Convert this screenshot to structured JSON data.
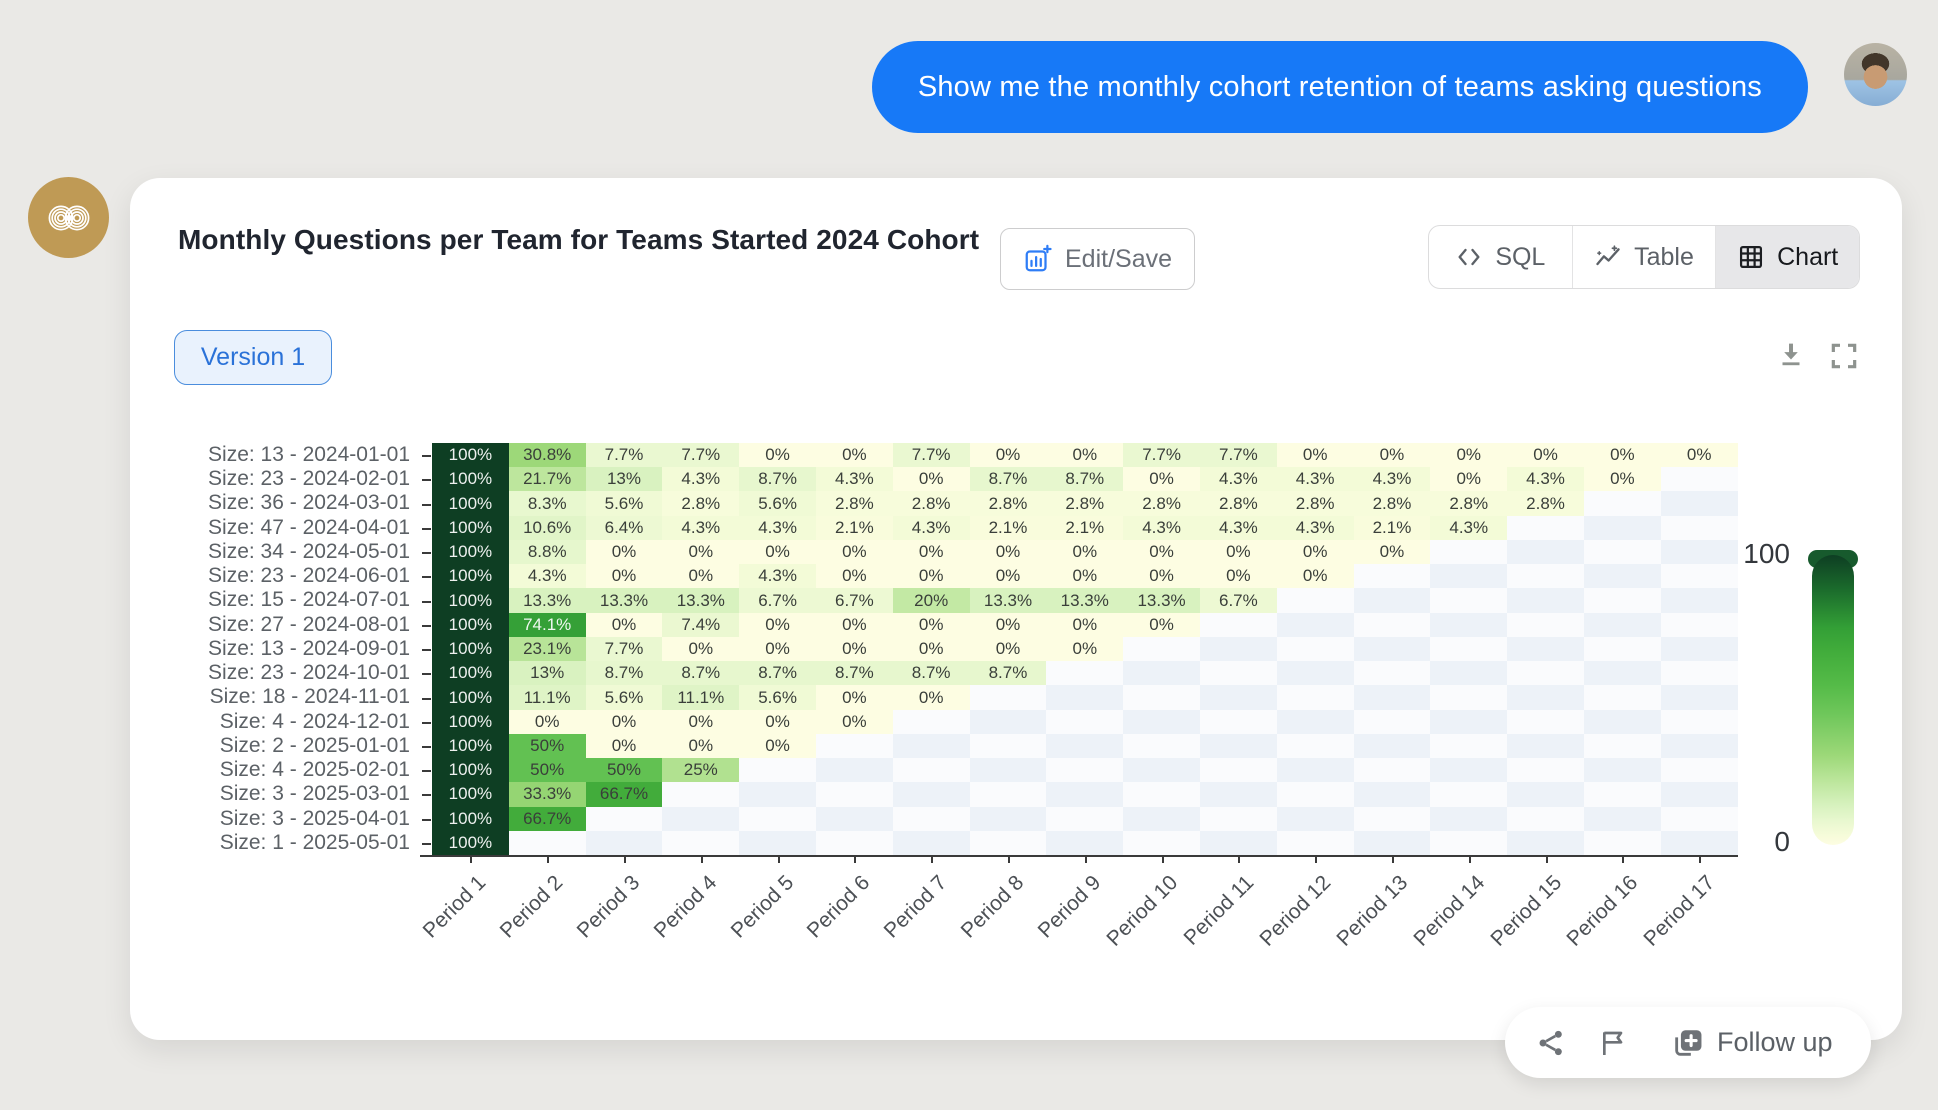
{
  "chat": {
    "message": "Show me the monthly cohort retention of teams asking questions",
    "bubble_color": "#1779f7"
  },
  "card": {
    "title": "Monthly Questions per Team for Teams Started 2024 Cohort",
    "edit_save_label": "Edit/Save",
    "tabs": [
      {
        "label": "SQL",
        "icon": "code-icon",
        "active": false
      },
      {
        "label": "Table",
        "icon": "sparkline-icon",
        "active": false
      },
      {
        "label": "Chart",
        "icon": "grid-icon",
        "active": true
      }
    ],
    "version_label": "Version 1"
  },
  "chart_data": {
    "type": "heatmap",
    "title": "Monthly Questions per Team for Teams Started 2024 Cohort",
    "x_labels": [
      "Period 1",
      "Period 2",
      "Period 3",
      "Period 4",
      "Period 5",
      "Period 6",
      "Period 7",
      "Period 8",
      "Period 9",
      "Period 10",
      "Period 11",
      "Period 12",
      "Period 13",
      "Period 14",
      "Period 15",
      "Period 16",
      "Period 17"
    ],
    "rows": [
      {
        "label": "Size: 13 - 2024-01-01",
        "values": [
          100,
          30.8,
          7.7,
          7.7,
          0,
          0,
          7.7,
          0,
          0,
          7.7,
          7.7,
          0,
          0,
          0,
          0,
          0,
          0
        ]
      },
      {
        "label": "Size: 23 - 2024-02-01",
        "values": [
          100,
          21.7,
          13,
          4.3,
          8.7,
          4.3,
          0,
          8.7,
          8.7,
          0,
          4.3,
          4.3,
          4.3,
          0,
          4.3,
          0
        ]
      },
      {
        "label": "Size: 36 - 2024-03-01",
        "values": [
          100,
          8.3,
          5.6,
          2.8,
          5.6,
          2.8,
          2.8,
          2.8,
          2.8,
          2.8,
          2.8,
          2.8,
          2.8,
          2.8,
          2.8
        ]
      },
      {
        "label": "Size: 47 - 2024-04-01",
        "values": [
          100,
          10.6,
          6.4,
          4.3,
          4.3,
          2.1,
          4.3,
          2.1,
          2.1,
          4.3,
          4.3,
          4.3,
          2.1,
          4.3
        ]
      },
      {
        "label": "Size: 34 - 2024-05-01",
        "values": [
          100,
          8.8,
          0,
          0,
          0,
          0,
          0,
          0,
          0,
          0,
          0,
          0,
          0
        ]
      },
      {
        "label": "Size: 23 - 2024-06-01",
        "values": [
          100,
          4.3,
          0,
          0,
          4.3,
          0,
          0,
          0,
          0,
          0,
          0,
          0
        ]
      },
      {
        "label": "Size: 15 - 2024-07-01",
        "values": [
          100,
          13.3,
          13.3,
          13.3,
          6.7,
          6.7,
          20,
          13.3,
          13.3,
          13.3,
          6.7
        ]
      },
      {
        "label": "Size: 27 - 2024-08-01",
        "values": [
          100,
          74.1,
          0,
          7.4,
          0,
          0,
          0,
          0,
          0,
          0
        ]
      },
      {
        "label": "Size: 13 - 2024-09-01",
        "values": [
          100,
          23.1,
          7.7,
          0,
          0,
          0,
          0,
          0,
          0
        ]
      },
      {
        "label": "Size: 23 - 2024-10-01",
        "values": [
          100,
          13,
          8.7,
          8.7,
          8.7,
          8.7,
          8.7,
          8.7
        ]
      },
      {
        "label": "Size: 18 - 2024-11-01",
        "values": [
          100,
          11.1,
          5.6,
          11.1,
          5.6,
          0,
          0
        ]
      },
      {
        "label": "Size: 4 - 2024-12-01",
        "values": [
          100,
          0,
          0,
          0,
          0,
          0
        ]
      },
      {
        "label": "Size: 2 - 2025-01-01",
        "values": [
          100,
          50,
          0,
          0,
          0
        ]
      },
      {
        "label": "Size: 4 - 2025-02-01",
        "values": [
          100,
          50,
          50,
          25
        ]
      },
      {
        "label": "Size: 3 - 2025-03-01",
        "values": [
          100,
          33.3,
          66.7
        ]
      },
      {
        "label": "Size: 3 - 2025-04-01",
        "values": [
          100,
          66.7
        ]
      },
      {
        "label": "Size: 1 - 2025-05-01",
        "values": [
          100
        ]
      }
    ],
    "value_suffix": "%",
    "colorbar": {
      "min_label": "0",
      "max_label": "100",
      "min": 0,
      "max": 100
    },
    "color_stops": [
      [
        0,
        "#fdfde2"
      ],
      [
        0.03,
        "#f7fcda"
      ],
      [
        0.08,
        "#e9f8d0"
      ],
      [
        0.14,
        "#d6f1bd"
      ],
      [
        0.22,
        "#bce69c"
      ],
      [
        0.31,
        "#9cd878"
      ],
      [
        0.45,
        "#6fc75b"
      ],
      [
        0.55,
        "#55bb48"
      ],
      [
        0.67,
        "#41ac3b"
      ],
      [
        0.75,
        "#339f36"
      ],
      [
        0.88,
        "#1b6c2c"
      ],
      [
        1,
        "#0e3e23"
      ]
    ],
    "empty_cell_colors": [
      "#edf2f8",
      "#fafbfd"
    ]
  },
  "footer": {
    "follow_up_label": "Follow up"
  }
}
